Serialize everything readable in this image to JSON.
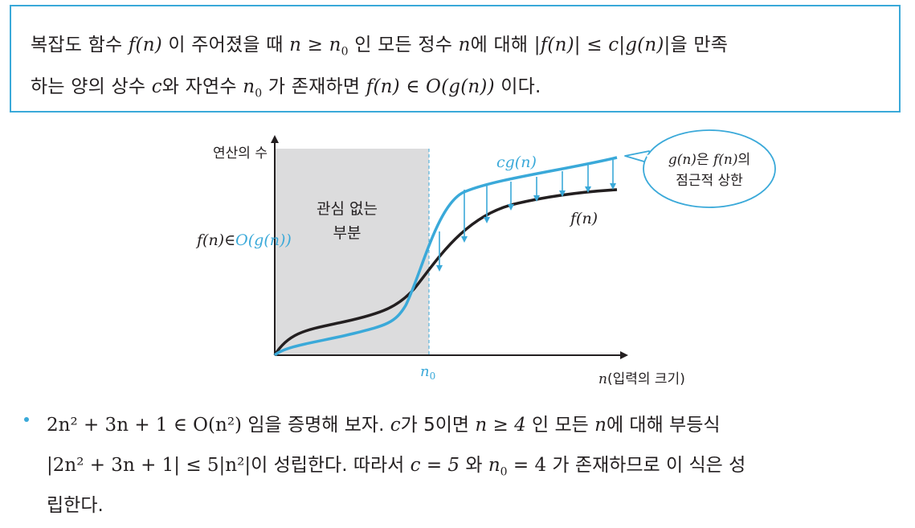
{
  "definition": {
    "line1": {
      "a": "복잡도 함수 ",
      "f_n": "f(n)",
      "b": " 이 주어졌을 때 ",
      "n_ge_n0_n": "n ≥ n",
      "n0_sub": "0",
      "c": " 인 모든 정수 ",
      "n": "n",
      "d": "에 대해 ",
      "ineq": "|f(n)| ≤ c|g(n)|",
      "e": "을 만족"
    },
    "line2": {
      "a": "하는 양의 상수 ",
      "c": "c",
      "b": "와 자연수 ",
      "n0_n": "n",
      "n0_sub": "0",
      "d": " 가 존재하면 ",
      "expr": "f(n) ∈ O(g(n))",
      "e": " 이다."
    }
  },
  "figure": {
    "y_axis_label": "연산의 수",
    "x_axis_label_italic": "n",
    "x_axis_label_rest": "(입력의 크기)",
    "shaded_label_1": "관심 없는",
    "shaded_label_2": "부분",
    "n0_label": "n",
    "n0_sub": "0",
    "left_label_black": "f(n)∈",
    "left_label_blue": "O(g(n))",
    "cg_label": "cg(n)",
    "f_label": "f(n)",
    "bubble_line1_a": "g(n)",
    "bubble_line1_b": "은 ",
    "bubble_line1_c": "f(n)",
    "bubble_line1_d": "의",
    "bubble_line2": "점근적 상한",
    "colors": {
      "accent": "#3aa9d9",
      "shade": "#dcdcdd",
      "curve_black": "#231f20"
    }
  },
  "bullet": {
    "l1_expr": "2n² + 3n + 1 ∈ O(n²)",
    "l1_a": " 임을 증명해 보자. ",
    "l1_c": "c",
    "l1_b": "가 5이면 ",
    "l1_cond": "n ≥ 4",
    "l1_d": " 인 모든 ",
    "l1_n": "n",
    "l1_e": "에 대해 부등식",
    "l2_expr": "|2n² + 3n + 1| ≤ 5|n²|",
    "l2_a": "이 성립한다. 따라서 ",
    "l2_c": "c = 5",
    "l2_b": " 와 ",
    "l2_n0": "n",
    "l2_n0_sub": "0",
    "l2_n0_rest": " = 4",
    "l2_d": " 가 존재하므로 이 식은 성",
    "l3": "립한다."
  }
}
